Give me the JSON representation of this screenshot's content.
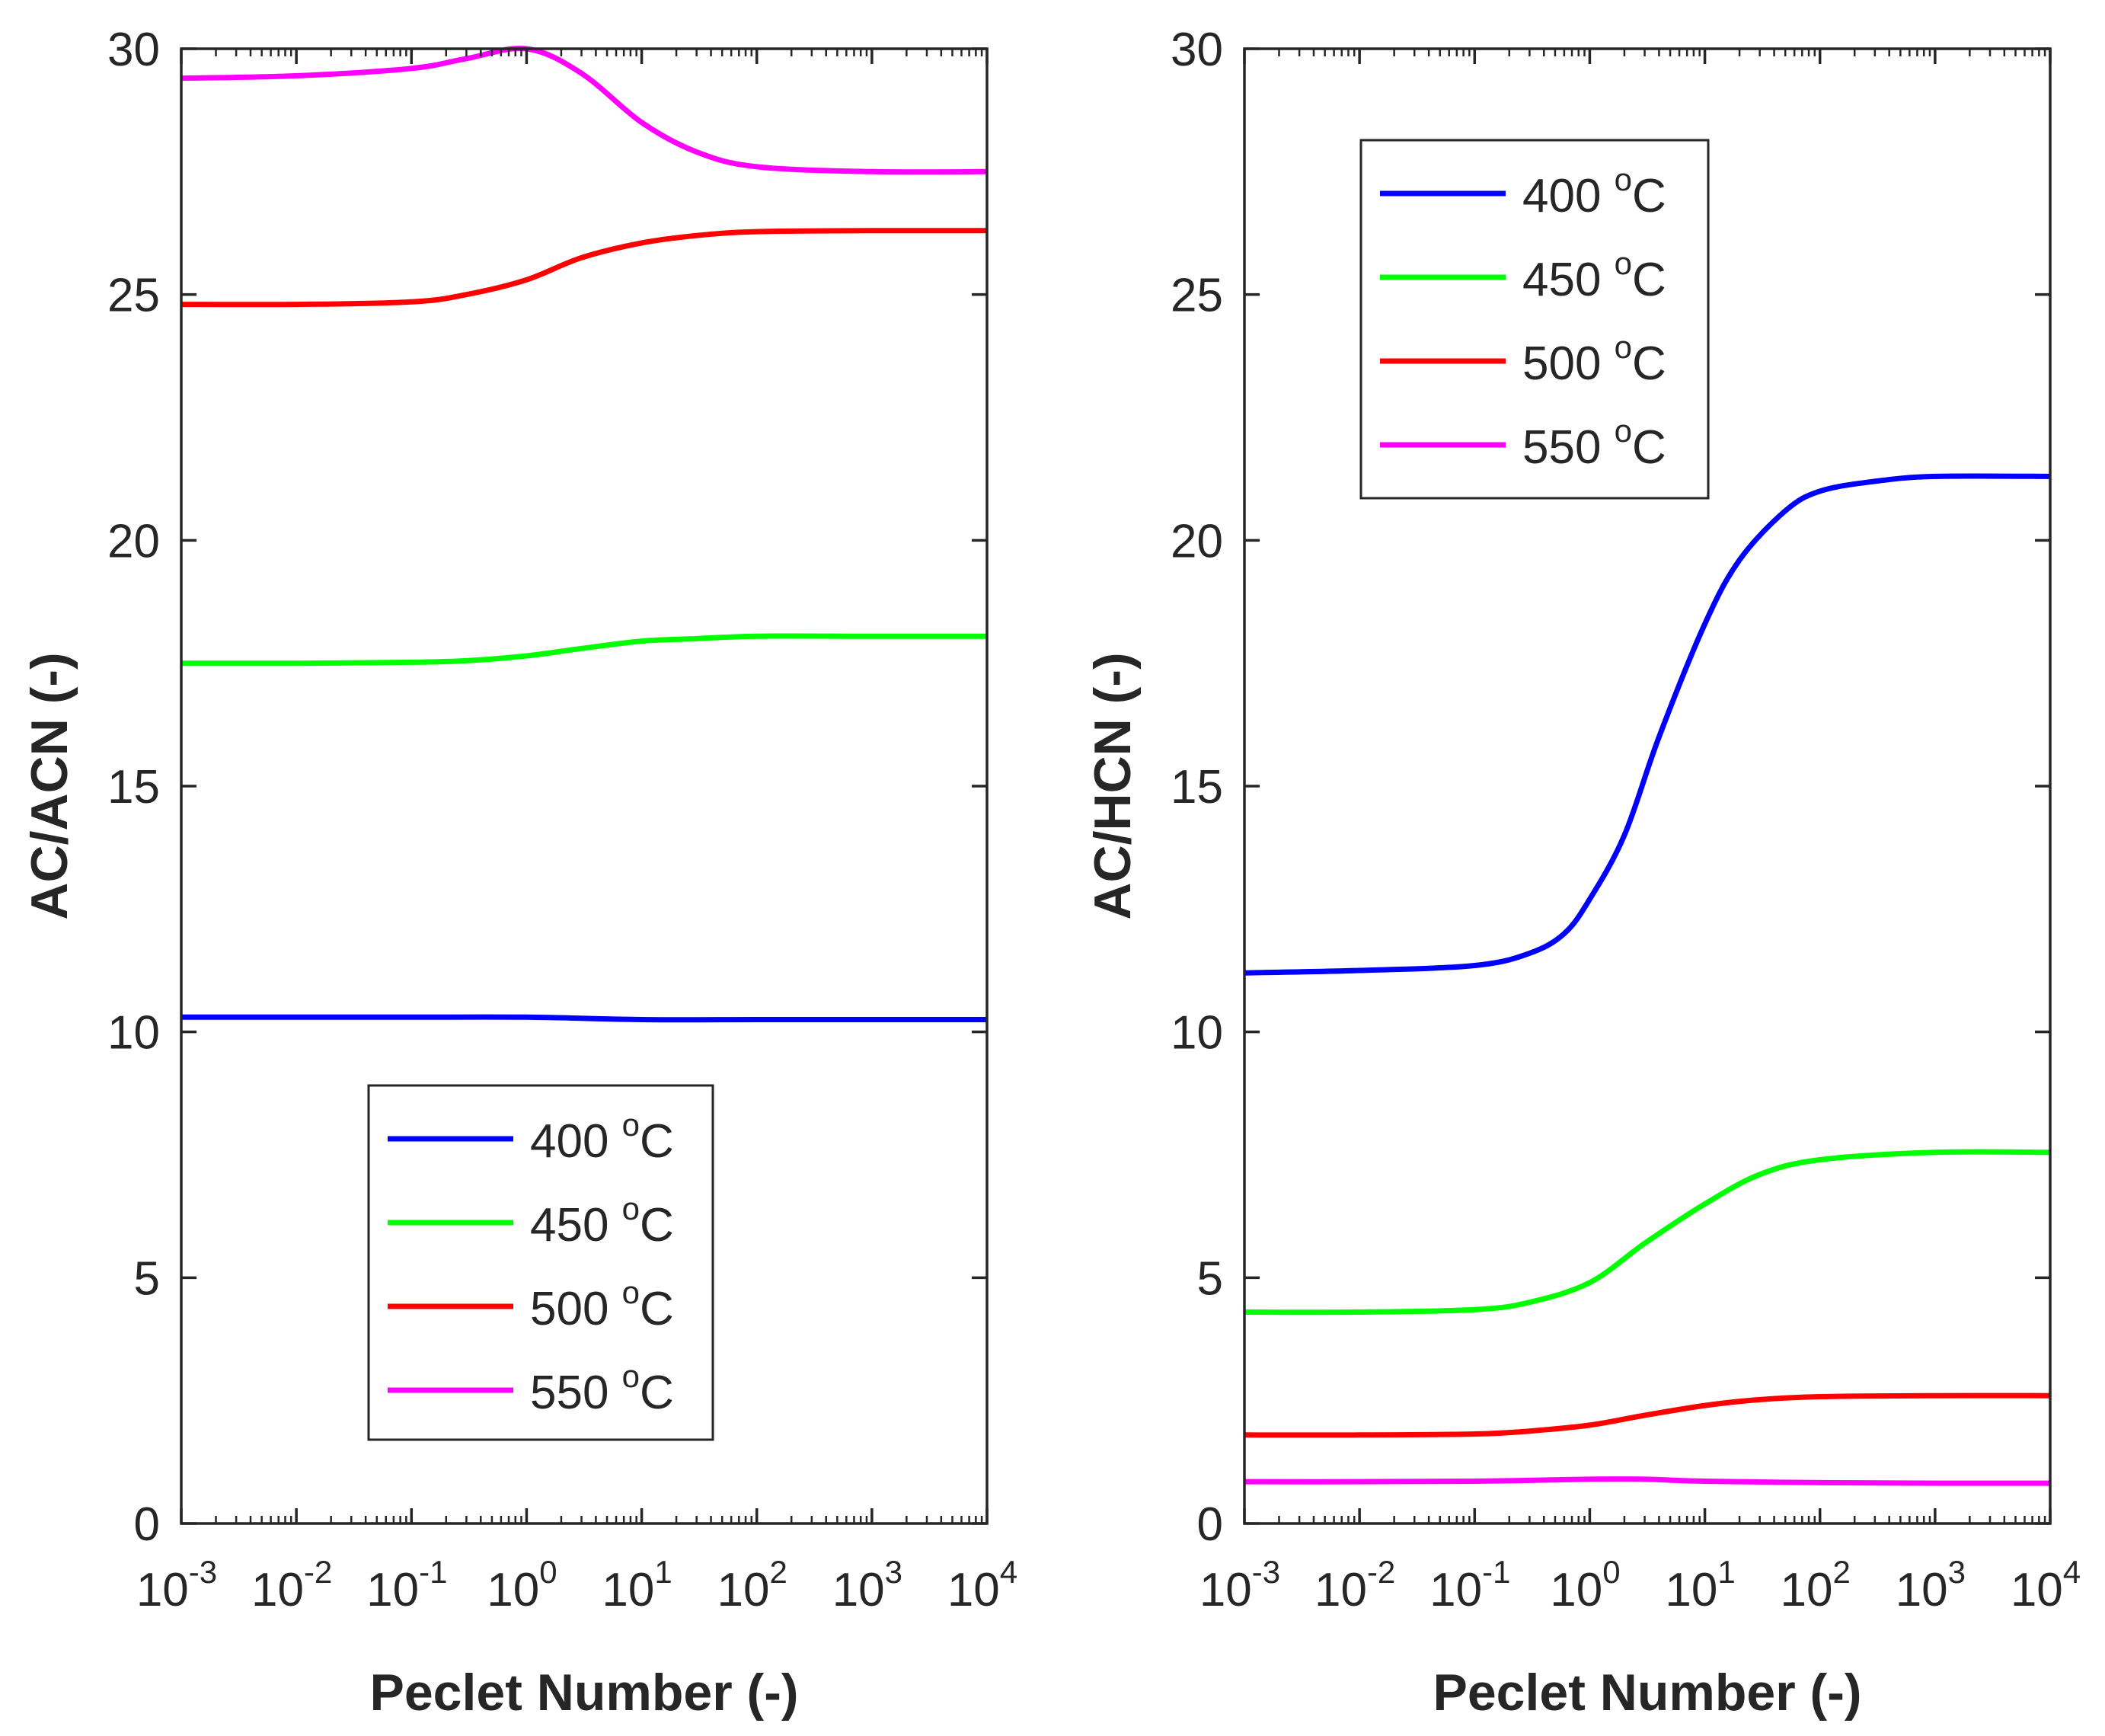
{
  "chart_data": [
    {
      "type": "line",
      "xscale": "log",
      "xlabel": "Peclet Number (-)",
      "ylabel": "AC/ACN (-)",
      "xlim": [
        0.001,
        10000
      ],
      "ylim": [
        0,
        30
      ],
      "xticks": [
        {
          "base": "10",
          "exp": "-3"
        },
        {
          "base": "10",
          "exp": "-2"
        },
        {
          "base": "10",
          "exp": "-1"
        },
        {
          "base": "10",
          "exp": "0"
        },
        {
          "base": "10",
          "exp": "1"
        },
        {
          "base": "10",
          "exp": "2"
        },
        {
          "base": "10",
          "exp": "3"
        },
        {
          "base": "10",
          "exp": "4"
        }
      ],
      "yticks": [
        "0",
        "5",
        "10",
        "15",
        "20",
        "25",
        "30"
      ],
      "legend_position": "bottom-center",
      "series": [
        {
          "name": "400 ",
          "unit": "o",
          "suffix": "C",
          "color": "#0000ff",
          "x": [
            0.001,
            0.01,
            0.1,
            1,
            10,
            100,
            1000,
            10000
          ],
          "y": [
            10.3,
            10.3,
            10.3,
            10.3,
            10.25,
            10.25,
            10.25,
            10.25
          ]
        },
        {
          "name": "450 ",
          "unit": "o",
          "suffix": "C",
          "color": "#00ff00",
          "x": [
            0.001,
            0.01,
            0.1,
            0.3,
            1,
            3,
            10,
            30,
            100,
            1000,
            10000
          ],
          "y": [
            17.5,
            17.5,
            17.52,
            17.55,
            17.65,
            17.8,
            17.95,
            18.0,
            18.05,
            18.05,
            18.05
          ]
        },
        {
          "name": "500 ",
          "unit": "o",
          "suffix": "C",
          "color": "#ff0000",
          "x": [
            0.001,
            0.01,
            0.1,
            0.3,
            1,
            3,
            10,
            30,
            100,
            1000,
            10000
          ],
          "y": [
            24.8,
            24.8,
            24.85,
            25.0,
            25.3,
            25.75,
            26.05,
            26.2,
            26.28,
            26.3,
            26.3
          ]
        },
        {
          "name": "550 ",
          "unit": "o",
          "suffix": "C",
          "color": "#ff00ff",
          "x": [
            0.001,
            0.01,
            0.1,
            0.3,
            1,
            3,
            10,
            30,
            100,
            1000,
            10000
          ],
          "y": [
            29.4,
            29.45,
            29.6,
            29.8,
            30.0,
            29.5,
            28.5,
            27.9,
            27.6,
            27.5,
            27.5
          ]
        }
      ]
    },
    {
      "type": "line",
      "xscale": "log",
      "xlabel": "Peclet Number (-)",
      "ylabel": "AC/HCN (-)",
      "xlim": [
        0.001,
        10000
      ],
      "ylim": [
        0,
        30
      ],
      "xticks": [
        {
          "base": "10",
          "exp": "-3"
        },
        {
          "base": "10",
          "exp": "-2"
        },
        {
          "base": "10",
          "exp": "-1"
        },
        {
          "base": "10",
          "exp": "0"
        },
        {
          "base": "10",
          "exp": "1"
        },
        {
          "base": "10",
          "exp": "2"
        },
        {
          "base": "10",
          "exp": "3"
        },
        {
          "base": "10",
          "exp": "4"
        }
      ],
      "yticks": [
        "0",
        "5",
        "10",
        "15",
        "20",
        "25",
        "30"
      ],
      "legend_position": "top-left",
      "series": [
        {
          "name": "400 ",
          "unit": "o",
          "suffix": "C",
          "color": "#0000ff",
          "x": [
            0.001,
            0.01,
            0.1,
            0.3,
            0.6,
            1,
            2,
            4,
            10,
            20,
            50,
            100,
            300,
            1000,
            10000
          ],
          "y": [
            11.2,
            11.25,
            11.35,
            11.6,
            12.0,
            12.7,
            14.0,
            16.0,
            18.3,
            19.6,
            20.6,
            21.0,
            21.2,
            21.3,
            21.3
          ]
        },
        {
          "name": "450 ",
          "unit": "o",
          "suffix": "C",
          "color": "#00ff00",
          "x": [
            0.001,
            0.01,
            0.1,
            0.3,
            1,
            3,
            10,
            30,
            100,
            1000,
            10000
          ],
          "y": [
            4.3,
            4.3,
            4.35,
            4.5,
            4.9,
            5.7,
            6.5,
            7.1,
            7.4,
            7.55,
            7.55
          ]
        },
        {
          "name": "500 ",
          "unit": "o",
          "suffix": "C",
          "color": "#ff0000",
          "x": [
            0.001,
            0.01,
            0.1,
            0.3,
            1,
            3,
            10,
            30,
            100,
            1000,
            10000
          ],
          "y": [
            1.8,
            1.8,
            1.82,
            1.88,
            2.0,
            2.2,
            2.4,
            2.52,
            2.58,
            2.6,
            2.6
          ]
        },
        {
          "name": "550 ",
          "unit": "o",
          "suffix": "C",
          "color": "#ff00ff",
          "x": [
            0.001,
            0.01,
            0.1,
            1,
            3,
            10,
            100,
            1000,
            10000
          ],
          "y": [
            0.85,
            0.85,
            0.86,
            0.9,
            0.9,
            0.86,
            0.83,
            0.82,
            0.82
          ]
        }
      ]
    }
  ]
}
